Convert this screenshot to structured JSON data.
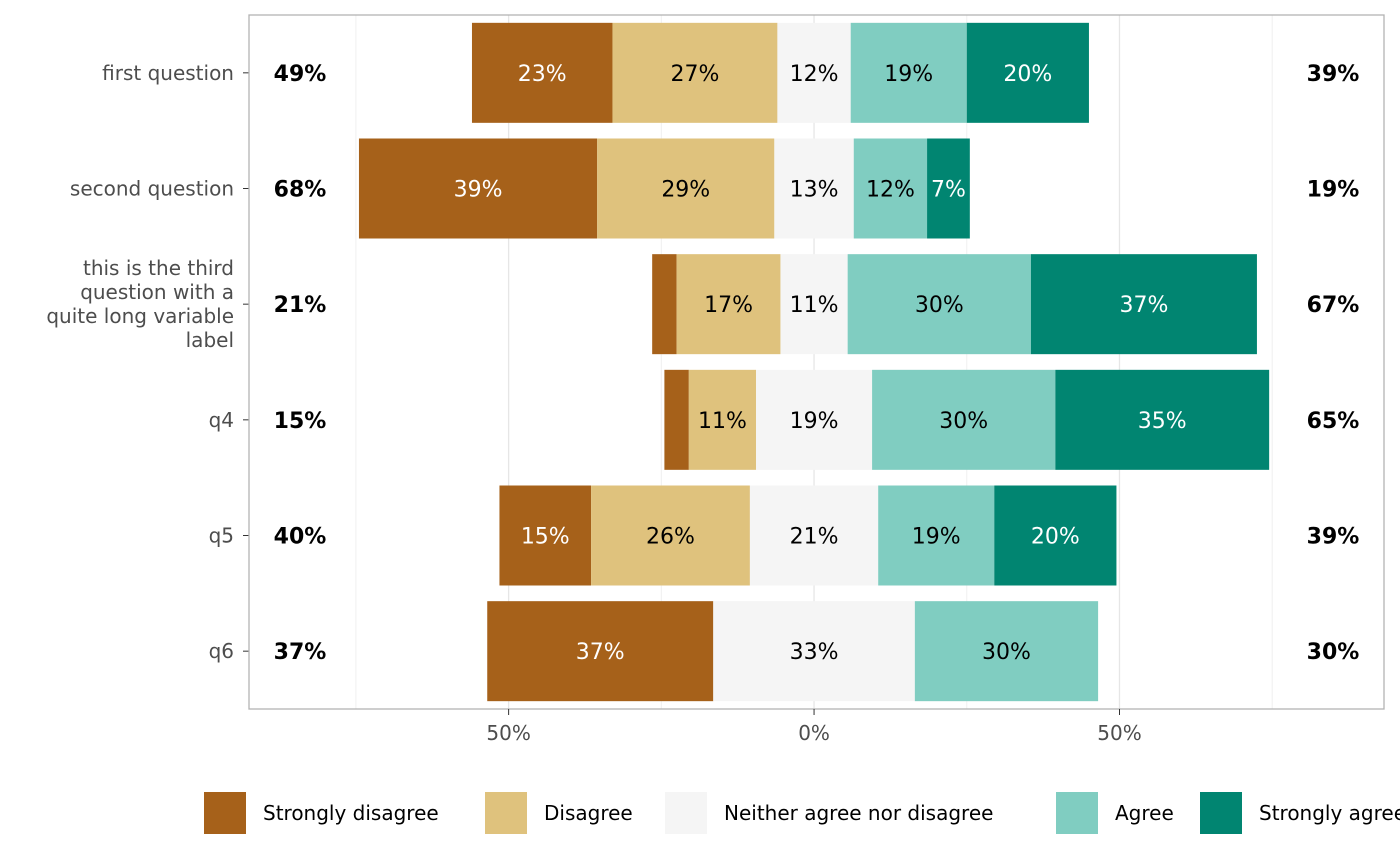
{
  "chart_data": {
    "type": "bar",
    "orientation": "horizontal",
    "stacking": "diverging",
    "categories": [
      "first question",
      "second question",
      "this is the third question with a quite long variable label",
      "q4",
      "q5",
      "q6"
    ],
    "category_label_lines": [
      [
        "first question"
      ],
      [
        "second question"
      ],
      [
        "this is the third",
        "question with a",
        "quite long variable",
        "label"
      ],
      [
        "q4"
      ],
      [
        "q5"
      ],
      [
        "q6"
      ]
    ],
    "series": [
      {
        "name": "Strongly disagree",
        "color": "#A6611A",
        "values": [
          23,
          39,
          4,
          4,
          15,
          37
        ],
        "labels": [
          "23%",
          "39%",
          "",
          "",
          "15%",
          "37%"
        ]
      },
      {
        "name": "Disagree",
        "color": "#DFC27D",
        "values": [
          27,
          29,
          17,
          11,
          26,
          0
        ],
        "labels": [
          "27%",
          "29%",
          "17%",
          "11%",
          "26%",
          ""
        ]
      },
      {
        "name": "Neither agree nor disagree",
        "color": "#F5F5F5",
        "values": [
          12,
          13,
          11,
          19,
          21,
          33
        ],
        "labels": [
          "12%",
          "13%",
          "11%",
          "19%",
          "21%",
          "33%"
        ]
      },
      {
        "name": "Agree",
        "color": "#80CDC1",
        "values": [
          19,
          12,
          30,
          30,
          19,
          30
        ],
        "labels": [
          "19%",
          "12%",
          "30%",
          "30%",
          "19%",
          "30%"
        ]
      },
      {
        "name": "Strongly agree",
        "color": "#018571",
        "values": [
          20,
          7,
          37,
          35,
          20,
          0
        ],
        "labels": [
          "20%",
          "7%",
          "37%",
          "35%",
          "20%",
          ""
        ]
      }
    ],
    "label_colors": [
      "#FFFFFF",
      "#000000",
      "#000000",
      "#000000",
      "#FFFFFF"
    ],
    "left_totals": [
      "49%",
      "68%",
      "21%",
      "15%",
      "40%",
      "37%"
    ],
    "right_totals": [
      "39%",
      "19%",
      "67%",
      "65%",
      "39%",
      "30%"
    ],
    "xlim": [
      -92.5,
      93.3
    ],
    "x_ticks": [
      -50,
      0,
      50
    ],
    "x_tick_labels": [
      "50%",
      "0%",
      "50%"
    ],
    "x_minor_grid": [
      -75,
      -25,
      25,
      75
    ],
    "grid": true,
    "legend_position": "bottom",
    "xlabel": "",
    "ylabel": "",
    "title": ""
  }
}
